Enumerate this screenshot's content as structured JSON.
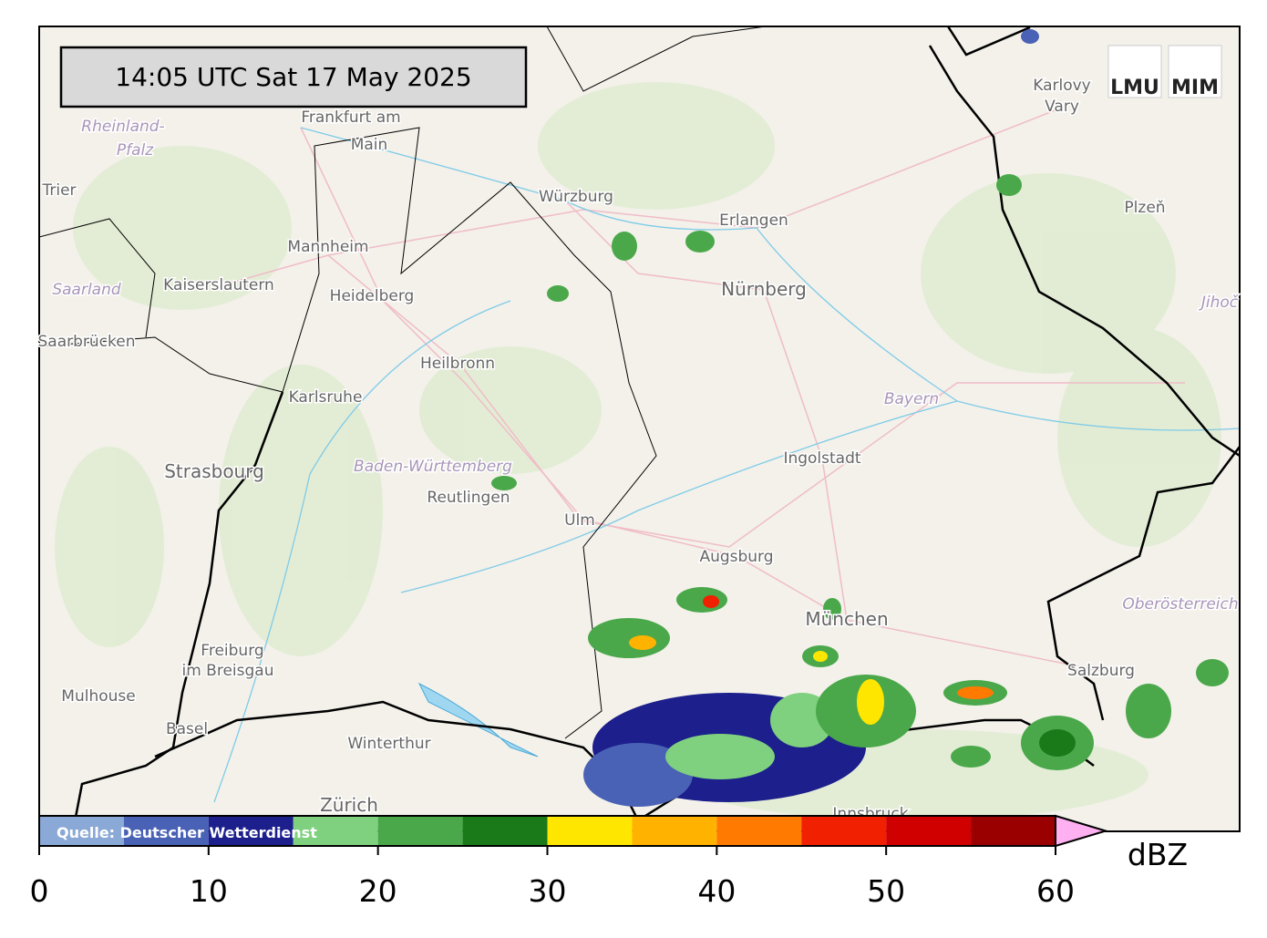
{
  "header": {
    "timestamp": "14:05 UTC  Sat 17 May 2025"
  },
  "logos": [
    "LMU",
    "MIM"
  ],
  "places": [
    "Frankfurt am",
    "Main",
    "Rheinland-",
    "Pfalz",
    "Trier",
    "Mannheim",
    "Kaiserslautern",
    "Saarland",
    "Heidelberg",
    "Saarbrücken",
    "Karlsruhe",
    "Heilbronn",
    "Würzburg",
    "Erlangen",
    "Nürnberg",
    "Karlovy",
    "Vary",
    "Plzeň",
    "Bayern",
    "Ingolstadt",
    "Augsburg",
    "Baden-Württemberg",
    "Reutlingen",
    "Ulm",
    "Strasbourg",
    "Freiburg",
    "im Breisgau",
    "Mulhouse",
    "Basel",
    "Winterthur",
    "Zürich",
    "München",
    "Salzburg",
    "Oberösterreich",
    "Innsbruck",
    "Jihoč"
  ],
  "source": "Quelle: Deutscher Wetterdienst",
  "colorbar": {
    "unit": "dBZ",
    "lim": [
      0,
      60
    ],
    "bounds": [
      0,
      5,
      10,
      15,
      20,
      25,
      30,
      35,
      40,
      45,
      50,
      55,
      60
    ],
    "colors": [
      "#8aa9d6",
      "#4a62b5",
      "#1c1f8c",
      "#7fd07f",
      "#4aa84a",
      "#1a7a1a",
      "#ffe600",
      "#ffb300",
      "#ff7a00",
      "#f02000",
      "#d00000",
      "#9a0000"
    ],
    "over_color": "#ffb0f0",
    "ticks": [
      0,
      10,
      20,
      30,
      40,
      50,
      60
    ]
  }
}
